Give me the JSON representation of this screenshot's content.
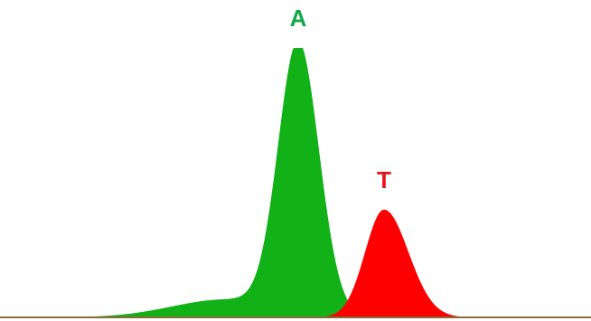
{
  "chart_data": {
    "type": "area",
    "xlim": [
      0,
      654
    ],
    "ylim": [
      0,
      300
    ],
    "baseline_color": "#8b6a3a",
    "series": [
      {
        "name": "A",
        "color": "#11b117",
        "label_color": "#12a84a",
        "center": 330,
        "height": 300,
        "sigma_left": 22,
        "sigma_right": 23,
        "tail_amplitude": 20,
        "tail_center": 250,
        "tail_sigma": 60
      },
      {
        "name": "T",
        "color": "#ff0000",
        "label_color": "#e8141c",
        "center": 425,
        "height": 120,
        "sigma_left": 21,
        "sigma_right": 27,
        "tail_amplitude": 0,
        "tail_center": 0,
        "tail_sigma": 1
      }
    ]
  }
}
